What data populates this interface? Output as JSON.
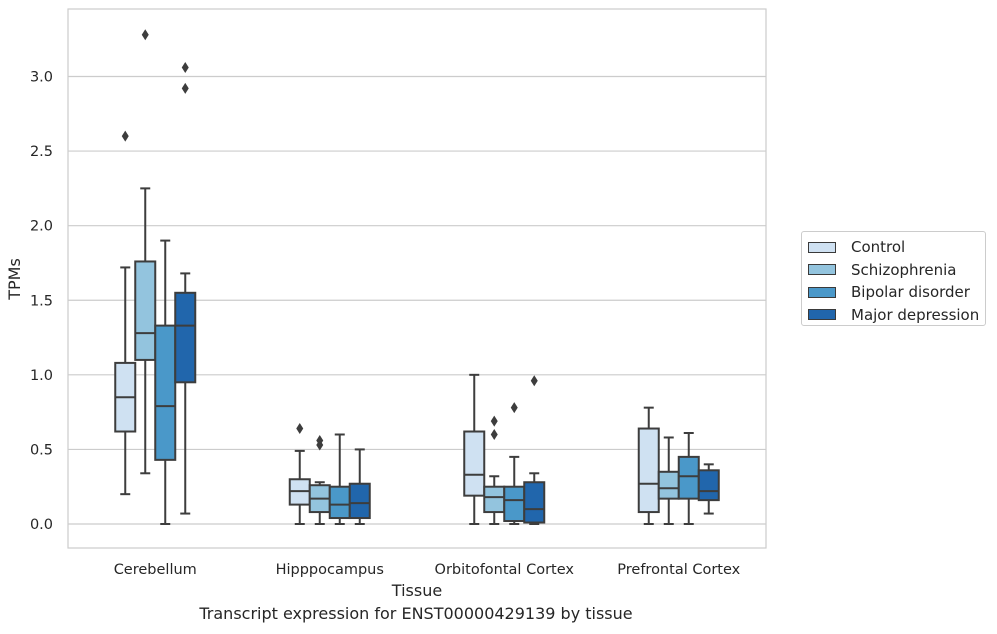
{
  "chart_data": {
    "type": "box",
    "title": "",
    "caption": "Transcript expression for ENST00000429139 by tissue",
    "xlabel": "Tissue",
    "ylabel": "TPMs",
    "categories": [
      "Cerebellum",
      "Hipppocampus",
      "Orbitofontal Cortex",
      "Prefrontal Cortex"
    ],
    "ylim": [
      -0.16,
      3.45
    ],
    "yticks": [
      0.0,
      0.5,
      1.0,
      1.5,
      2.0,
      2.5,
      3.0
    ],
    "ytick_labels": [
      "0.0",
      "0.5",
      "1.0",
      "1.5",
      "2.0",
      "2.5",
      "3.0"
    ],
    "grid": "horizontal",
    "legend_position": "right",
    "series": [
      {
        "name": "Control",
        "color": "#cfe1f2",
        "boxes": [
          {
            "whislo": 0.2,
            "q1": 0.62,
            "med": 0.85,
            "q3": 1.08,
            "whishi": 1.72,
            "fliers": [
              2.6
            ]
          },
          {
            "whislo": 0.0,
            "q1": 0.13,
            "med": 0.22,
            "q3": 0.3,
            "whishi": 0.49,
            "fliers": [
              0.64
            ]
          },
          {
            "whislo": 0.0,
            "q1": 0.19,
            "med": 0.33,
            "q3": 0.62,
            "whishi": 1.0,
            "fliers": []
          },
          {
            "whislo": 0.0,
            "q1": 0.08,
            "med": 0.27,
            "q3": 0.64,
            "whishi": 0.78,
            "fliers": []
          }
        ]
      },
      {
        "name": "Schizophrenia",
        "color": "#93c4de",
        "boxes": [
          {
            "whislo": 0.34,
            "q1": 1.1,
            "med": 1.28,
            "q3": 1.76,
            "whishi": 2.25,
            "fliers": [
              3.28
            ]
          },
          {
            "whislo": 0.0,
            "q1": 0.08,
            "med": 0.17,
            "q3": 0.26,
            "whishi": 0.28,
            "fliers": [
              0.53,
              0.56
            ]
          },
          {
            "whislo": 0.0,
            "q1": 0.08,
            "med": 0.18,
            "q3": 0.25,
            "whishi": 0.32,
            "fliers": [
              0.6,
              0.69
            ]
          },
          {
            "whislo": 0.0,
            "q1": 0.17,
            "med": 0.24,
            "q3": 0.35,
            "whishi": 0.58,
            "fliers": []
          }
        ]
      },
      {
        "name": "Bipolar disorder",
        "color": "#4a98c9",
        "boxes": [
          {
            "whislo": 0.0,
            "q1": 0.43,
            "med": 0.79,
            "q3": 1.33,
            "whishi": 1.9,
            "fliers": []
          },
          {
            "whislo": 0.0,
            "q1": 0.04,
            "med": 0.13,
            "q3": 0.25,
            "whishi": 0.6,
            "fliers": []
          },
          {
            "whislo": 0.0,
            "q1": 0.02,
            "med": 0.16,
            "q3": 0.25,
            "whishi": 0.45,
            "fliers": [
              0.78
            ]
          },
          {
            "whislo": 0.0,
            "q1": 0.17,
            "med": 0.32,
            "q3": 0.45,
            "whishi": 0.61,
            "fliers": []
          }
        ]
      },
      {
        "name": "Major depression",
        "color": "#2166ac",
        "boxes": [
          {
            "whislo": 0.07,
            "q1": 0.95,
            "med": 1.33,
            "q3": 1.55,
            "whishi": 1.68,
            "fliers": [
              2.92,
              3.06
            ]
          },
          {
            "whislo": 0.0,
            "q1": 0.04,
            "med": 0.14,
            "q3": 0.27,
            "whishi": 0.5,
            "fliers": []
          },
          {
            "whislo": 0.0,
            "q1": 0.01,
            "med": 0.1,
            "q3": 0.28,
            "whishi": 0.34,
            "fliers": [
              0.96
            ]
          },
          {
            "whislo": 0.07,
            "q1": 0.16,
            "med": 0.22,
            "q3": 0.36,
            "whishi": 0.4,
            "fliers": []
          }
        ]
      }
    ]
  }
}
